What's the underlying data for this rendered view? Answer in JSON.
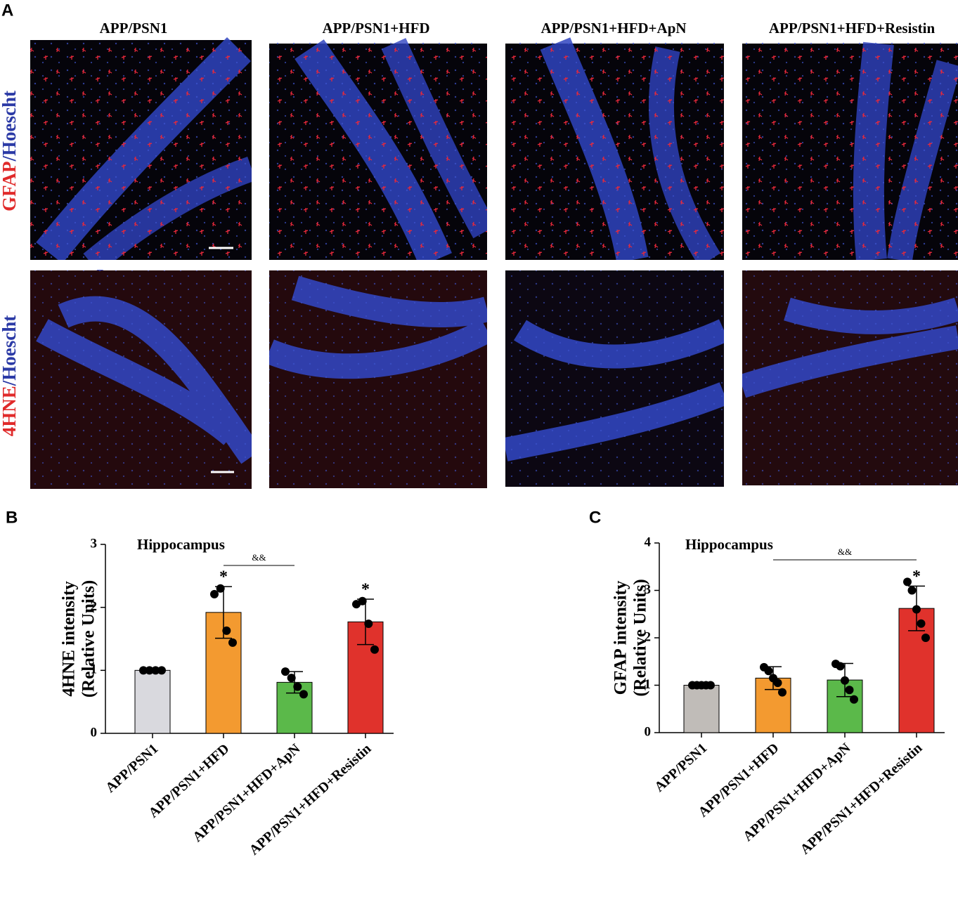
{
  "panel_a": {
    "label": "A",
    "columns": [
      "APP/PSN1",
      "APP/PSN1+HFD",
      "APP/PSN1+HFD+ApN",
      "APP/PSN1+HFD+Resistin"
    ],
    "rows": [
      {
        "marker": "GFAP",
        "stain": "/Hoescht"
      },
      {
        "marker": "4HNE",
        "stain": "/Hoescht"
      }
    ]
  },
  "chart_data": [
    {
      "type": "bar",
      "panel": "B",
      "title": "Hippocampus",
      "y_label": [
        "4HNE intensity",
        "(Relative Units)"
      ],
      "categories": [
        "APP/PSN1",
        "APP/PSN1+HFD",
        "APP/PSN1+HFD+ApN",
        "APP/PSN1+HFD+Resistin"
      ],
      "values": [
        1,
        1.92,
        0.81,
        1.77
      ],
      "errors": [
        0,
        0.41,
        0.17,
        0.36
      ],
      "points": [
        [
          1,
          1,
          1,
          1
        ],
        [
          2.21,
          2.3,
          1.63,
          1.44
        ],
        [
          0.98,
          0.88,
          0.74,
          0.62
        ],
        [
          2.05,
          2.1,
          1.74,
          1.33
        ]
      ],
      "colors": [
        "#d9d9de",
        "#f39a30",
        "#5bb94a",
        "#e0322c"
      ],
      "significance": [
        null,
        "*",
        null,
        "*"
      ],
      "bracket": {
        "label": "&&",
        "from": 1,
        "to": 2
      },
      "ylim": [
        0,
        3
      ],
      "yticks": [
        0,
        1,
        2,
        3
      ]
    },
    {
      "type": "bar",
      "panel": "C",
      "title": "Hippocampus",
      "y_label": [
        "GFAP intensity",
        "(Relative Units)"
      ],
      "categories": [
        "APP/PSN1",
        "APP/PSN1+HFD",
        "APP/PSN1+HFD+ApN",
        "APP/PSN1+HFD+Resistin"
      ],
      "values": [
        1,
        1.15,
        1.11,
        2.62
      ],
      "errors": [
        0,
        0.24,
        0.35,
        0.47
      ],
      "points": [
        [
          1,
          1,
          1,
          1,
          1
        ],
        [
          1.38,
          1.3,
          1.15,
          1.05,
          0.85
        ],
        [
          1.45,
          1.4,
          1.1,
          0.9,
          0.7
        ],
        [
          3.18,
          3.0,
          2.6,
          2.3,
          2.0
        ]
      ],
      "colors": [
        "#c0bcb8",
        "#f39a30",
        "#5bb94a",
        "#e0322c"
      ],
      "significance": [
        null,
        null,
        null,
        "*"
      ],
      "bracket": {
        "label": "&&",
        "from": 1,
        "to": 3
      },
      "ylim": [
        0,
        4
      ],
      "yticks": [
        0,
        1,
        2,
        3,
        4
      ]
    }
  ]
}
